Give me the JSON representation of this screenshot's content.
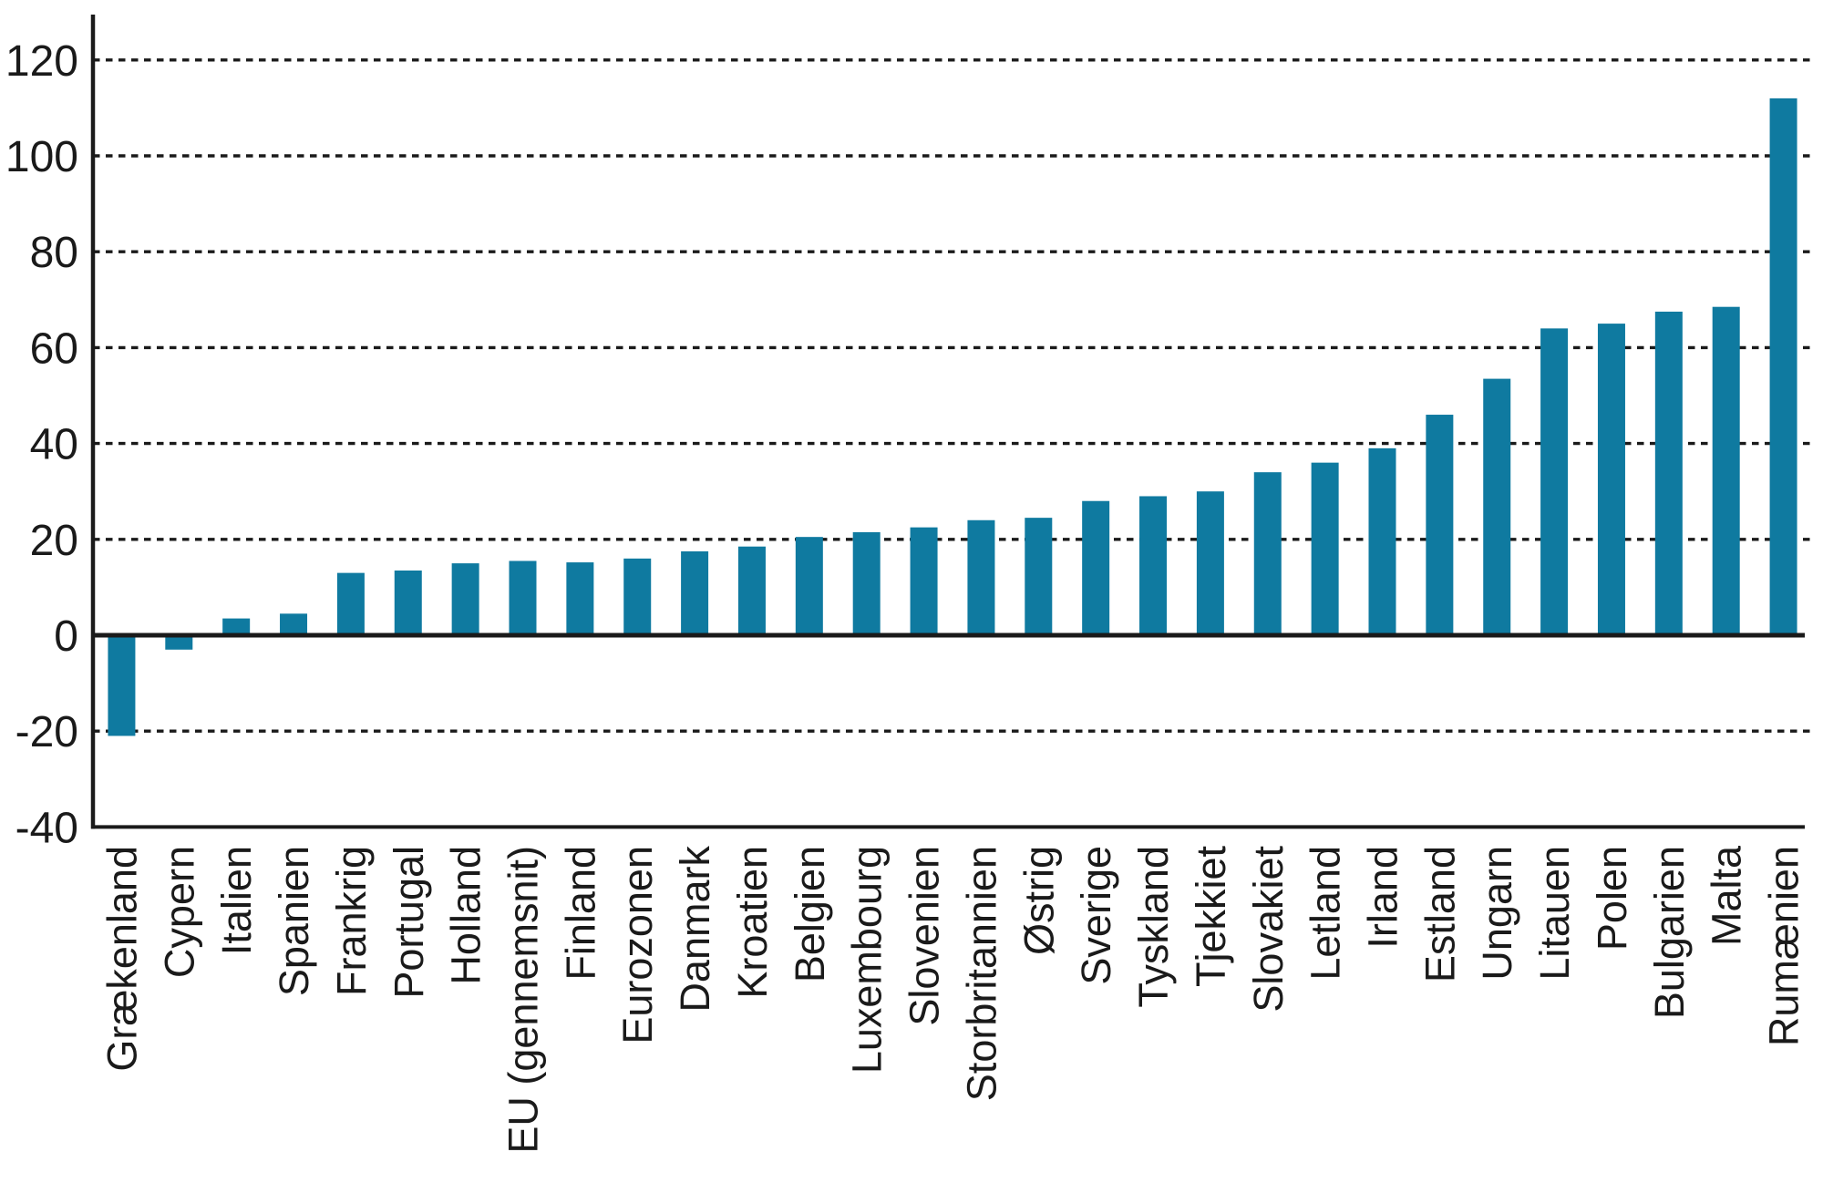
{
  "chart_data": {
    "type": "bar",
    "categories": [
      "Grækenland",
      "Cypern",
      "Italien",
      "Spanien",
      "Frankrig",
      "Portugal",
      "Holland",
      "EU (gennemsnit)",
      "Finland",
      "Eurozonen",
      "Danmark",
      "Kroatien",
      "Belgien",
      "Luxembourg",
      "Slovenien",
      "Storbritannien",
      "Østrig",
      "Sverige",
      "Tyskland",
      "Tjekkiet",
      "Slovakiet",
      "Letland",
      "Irland",
      "Estland",
      "Ungarn",
      "Litauen",
      "Polen",
      "Bulgarien",
      "Malta",
      "Rumænien"
    ],
    "values": [
      -21,
      -3,
      3.5,
      4.5,
      13,
      13.5,
      15,
      15.5,
      15.2,
      16,
      17.5,
      18.5,
      20.5,
      21.5,
      22.5,
      24,
      24.5,
      28,
      29,
      30,
      34,
      36,
      39,
      46,
      53.5,
      64,
      65,
      67.5,
      68.5,
      112
    ],
    "title": "",
    "xlabel": "",
    "ylabel": "",
    "ylim": [
      -40,
      132
    ],
    "yticks": [
      120,
      100,
      80,
      60,
      40,
      20,
      0,
      -20,
      -40
    ],
    "grid": "horizontal-dotted",
    "legend": "none",
    "bar_color": "#0F7AA0",
    "axis_color": "#1a1a1a",
    "text_color": "#1a1a1a",
    "background_color": "#ffffff"
  }
}
